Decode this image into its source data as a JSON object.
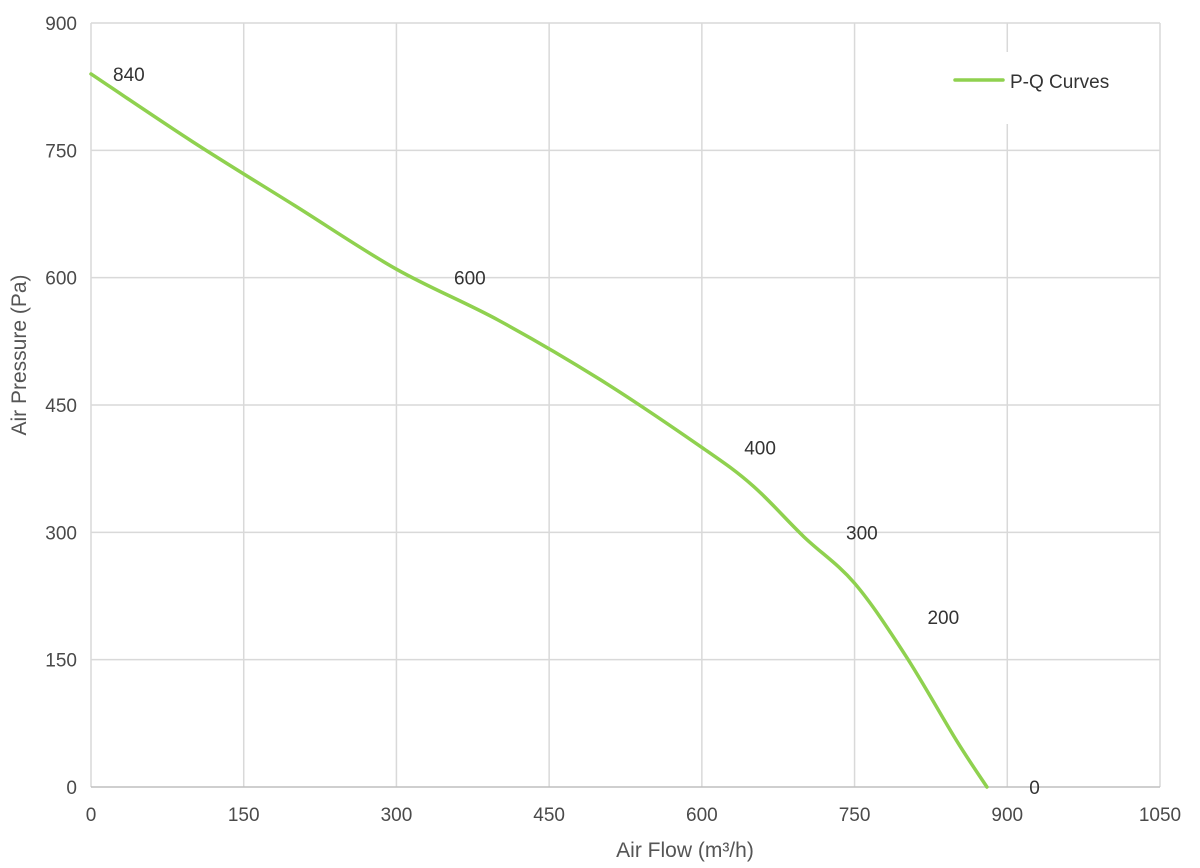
{
  "chart_data": {
    "type": "line",
    "xlabel": "Air Flow  (m³/h)",
    "ylabel": "Air Pressure  (Pa)",
    "xlim": [
      0,
      1050
    ],
    "ylim": [
      0,
      900
    ],
    "x_ticks": [
      0,
      150,
      300,
      450,
      600,
      750,
      900,
      1050
    ],
    "y_ticks": [
      0,
      150,
      300,
      450,
      600,
      750,
      900
    ],
    "grid": true,
    "legend_position": "top-right",
    "colors": {
      "series": "#8fd14f",
      "grid": "#d9d9d9"
    },
    "series": [
      {
        "name": "P-Q Curves",
        "x": [
          0,
          100,
          200,
          300,
          400,
          500,
          600,
          650,
          700,
          750,
          800,
          850,
          880
        ],
        "y": [
          840,
          760,
          685,
          610,
          550,
          480,
          400,
          355,
          295,
          240,
          155,
          55,
          0
        ]
      }
    ],
    "data_labels": [
      {
        "text": "840",
        "x": 0,
        "y": 840
      },
      {
        "text": "600",
        "x": 335,
        "y": 600
      },
      {
        "text": "400",
        "x": 620,
        "y": 400
      },
      {
        "text": "300",
        "x": 720,
        "y": 300
      },
      {
        "text": "200",
        "x": 800,
        "y": 200
      },
      {
        "text": "0",
        "x": 900,
        "y": 0
      }
    ]
  }
}
